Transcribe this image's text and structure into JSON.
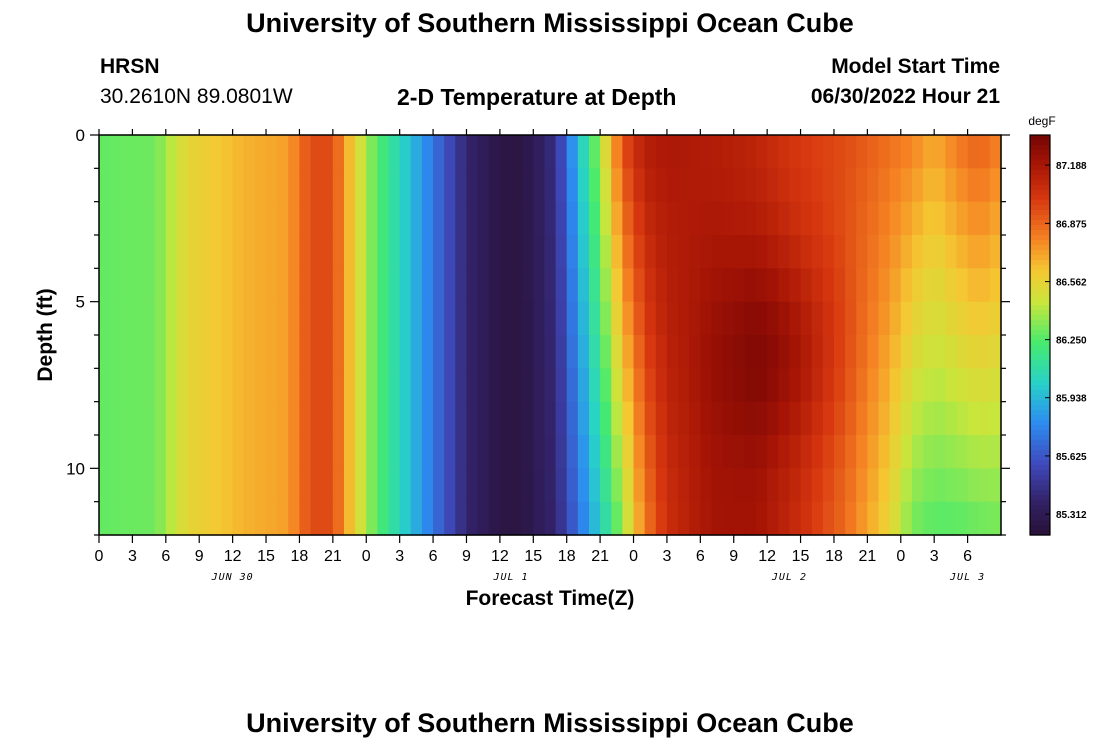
{
  "header": {
    "title": "University of Southern Mississippi Ocean Cube",
    "station": "HRSN",
    "coordinates": "30.2610N  89.0801W",
    "subtitle": "2-D Temperature at Depth",
    "model_start_label": "Model Start Time",
    "model_start_value": "06/30/2022 Hour 21"
  },
  "footer": {
    "title": "University of Southern Mississippi Ocean Cube"
  },
  "chart_data": {
    "type": "heatmap",
    "title": "2-D Temperature at Depth",
    "xlabel": "Forecast Time(Z)",
    "ylabel": "Depth (ft)",
    "x_hours_range": [
      0,
      81
    ],
    "x_tick_labels": [
      "0",
      "3",
      "6",
      "9",
      "12",
      "15",
      "18",
      "21",
      "0",
      "3",
      "6",
      "9",
      "12",
      "15",
      "18",
      "21",
      "0",
      "3",
      "6",
      "9",
      "12",
      "15",
      "18",
      "21",
      "0",
      "3",
      "6"
    ],
    "date_labels": [
      {
        "label": "JUN 30",
        "hour": 12
      },
      {
        "label": "JUL 1",
        "hour": 37
      },
      {
        "label": "JUL 2",
        "hour": 62
      },
      {
        "label": "JUL 3",
        "hour": 78
      }
    ],
    "y_range": [
      0,
      12
    ],
    "y_ticks": [
      0,
      5,
      10
    ],
    "colorbar": {
      "unit": "degF",
      "min": 85.2,
      "max": 87.35,
      "tick_labels": [
        "87.188",
        "86.875",
        "86.562",
        "86.250",
        "85.938",
        "85.625",
        "85.312"
      ],
      "tick_values": [
        87.188,
        86.875,
        86.562,
        86.25,
        85.938,
        85.625,
        85.312
      ]
    },
    "surface_profile": {
      "description": "approximate temperature (degF) near surface vs forecast hour",
      "hours": [
        0,
        5,
        8,
        13,
        17,
        19,
        21,
        23,
        25,
        28,
        31,
        33,
        36,
        38,
        41,
        43,
        45,
        47,
        49,
        51,
        55,
        59,
        63,
        67,
        71,
        73,
        75,
        77,
        79,
        81
      ],
      "values": [
        86.28,
        86.3,
        86.55,
        86.67,
        86.72,
        86.95,
        86.95,
        86.55,
        86.25,
        85.95,
        85.62,
        85.4,
        85.25,
        85.25,
        85.45,
        85.95,
        86.4,
        86.95,
        87.15,
        87.18,
        87.15,
        87.1,
        87.0,
        86.95,
        86.85,
        86.8,
        86.7,
        86.82,
        86.9,
        86.8
      ]
    },
    "bottom_profile": {
      "description": "approximate temperature (degF) near 12 ft depth vs forecast hour",
      "hours": [
        0,
        5,
        8,
        13,
        17,
        19,
        21,
        23,
        25,
        28,
        31,
        33,
        36,
        38,
        41,
        43,
        45,
        47,
        49,
        51,
        55,
        59,
        63,
        67,
        71,
        73,
        75,
        77,
        79,
        81
      ],
      "values": [
        86.28,
        86.3,
        86.55,
        86.67,
        86.72,
        86.95,
        86.95,
        86.55,
        86.25,
        85.95,
        85.62,
        85.4,
        85.25,
        85.25,
        85.4,
        85.7,
        86.0,
        86.35,
        86.8,
        87.05,
        87.2,
        87.2,
        87.05,
        86.85,
        86.55,
        86.3,
        86.25,
        86.25,
        86.28,
        86.3
      ]
    },
    "deep_warm_core": {
      "description": "peak warm core (approx) at depth",
      "peak_degF": 87.32,
      "center_hour": 61,
      "center_depth_ft": 6.5
    }
  }
}
